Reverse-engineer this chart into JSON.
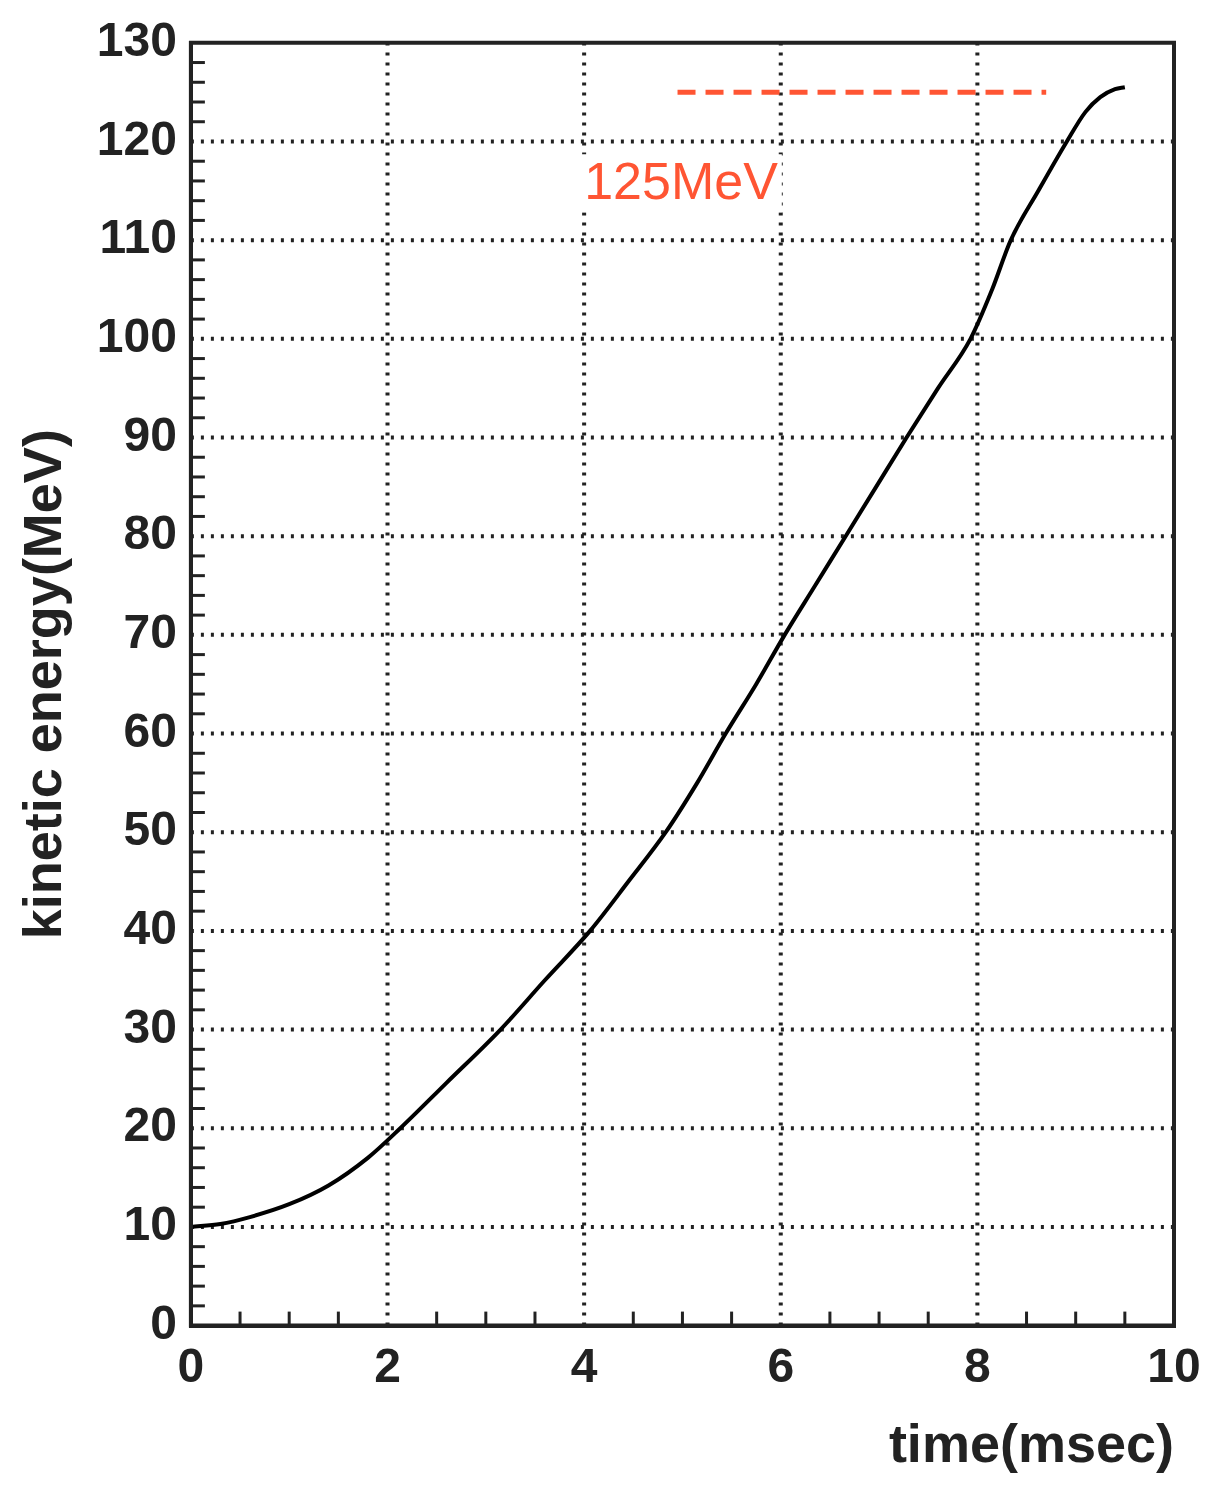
{
  "chart_data": {
    "type": "line",
    "xlabel": "time(msec)",
    "ylabel": "kinetic energy(MeV)",
    "xlim": [
      0,
      10
    ],
    "ylim": [
      0,
      130
    ],
    "xticks": [
      0,
      {
        "value": 0.5,
        "label": null
      },
      {
        "value": 1,
        "label": null
      },
      {
        "value": 1.5,
        "label": null
      },
      2,
      {
        "value": 2.5,
        "label": null
      },
      {
        "value": 3,
        "label": null
      },
      {
        "value": 3.5,
        "label": null
      },
      4,
      {
        "value": 4.5,
        "label": null
      },
      {
        "value": 5,
        "label": null
      },
      {
        "value": 5.5,
        "label": null
      },
      6,
      {
        "value": 6.5,
        "label": null
      },
      {
        "value": 7,
        "label": null
      },
      {
        "value": 7.5,
        "label": null
      },
      8,
      {
        "value": 8.5,
        "label": null
      },
      {
        "value": 9,
        "label": null
      },
      {
        "value": 9.5,
        "label": null
      },
      10
    ],
    "yticks": [
      0,
      {
        "value": 2,
        "label": null
      },
      {
        "value": 4,
        "label": null
      },
      {
        "value": 6,
        "label": null
      },
      {
        "value": 8,
        "label": null
      },
      10,
      {
        "value": 12,
        "label": null
      },
      {
        "value": 14,
        "label": null
      },
      {
        "value": 16,
        "label": null
      },
      {
        "value": 18,
        "label": null
      },
      20,
      {
        "value": 22,
        "label": null
      },
      {
        "value": 24,
        "label": null
      },
      {
        "value": 26,
        "label": null
      },
      {
        "value": 28,
        "label": null
      },
      30,
      {
        "value": 32,
        "label": null
      },
      {
        "value": 34,
        "label": null
      },
      {
        "value": 36,
        "label": null
      },
      {
        "value": 38,
        "label": null
      },
      40,
      {
        "value": 42,
        "label": null
      },
      {
        "value": 44,
        "label": null
      },
      {
        "value": 46,
        "label": null
      },
      {
        "value": 48,
        "label": null
      },
      50,
      {
        "value": 52,
        "label": null
      },
      {
        "value": 54,
        "label": null
      },
      {
        "value": 56,
        "label": null
      },
      {
        "value": 58,
        "label": null
      },
      60,
      {
        "value": 62,
        "label": null
      },
      {
        "value": 64,
        "label": null
      },
      {
        "value": 66,
        "label": null
      },
      {
        "value": 68,
        "label": null
      },
      70,
      {
        "value": 72,
        "label": null
      },
      {
        "value": 74,
        "label": null
      },
      {
        "value": 76,
        "label": null
      },
      {
        "value": 78,
        "label": null
      },
      80,
      {
        "value": 82,
        "label": null
      },
      {
        "value": 84,
        "label": null
      },
      {
        "value": 86,
        "label": null
      },
      {
        "value": 88,
        "label": null
      },
      90,
      {
        "value": 92,
        "label": null
      },
      {
        "value": 94,
        "label": null
      },
      {
        "value": 96,
        "label": null
      },
      {
        "value": 98,
        "label": null
      },
      100,
      {
        "value": 102,
        "label": null
      },
      {
        "value": 104,
        "label": null
      },
      {
        "value": 106,
        "label": null
      },
      {
        "value": 108,
        "label": null
      },
      110,
      {
        "value": 112,
        "label": null
      },
      {
        "value": 114,
        "label": null
      },
      {
        "value": 116,
        "label": null
      },
      {
        "value": 118,
        "label": null
      },
      120,
      {
        "value": 122,
        "label": null
      },
      {
        "value": 124,
        "label": null
      },
      {
        "value": 126,
        "label": null
      },
      {
        "value": 128,
        "label": null
      },
      130
    ],
    "grid": true,
    "legend": false,
    "marker": "none",
    "series": [
      {
        "color": "#000000",
        "line_style": "solid",
        "x": [
          0,
          0.3,
          0.6,
          1,
          1.4,
          1.8,
          2.13,
          2.6,
          3.15,
          3.6,
          4.06,
          4.45,
          4.83,
          5.15,
          5.44,
          5.75,
          6.04,
          6.35,
          6.66,
          6.97,
          7.28,
          7.6,
          7.93,
          8.15,
          8.34,
          8.62,
          8.91,
          9.1,
          9.25,
          9.4,
          9.5
        ],
        "values": [
          10,
          10.3,
          11,
          12.3,
          14.2,
          17,
          20,
          24.6,
          30,
          35,
          40,
          45,
          50,
          55,
          60,
          65,
          70,
          75,
          80,
          85,
          90,
          95,
          100,
          105,
          110,
          115,
          120,
          123,
          124.5,
          125.3,
          125.5
        ]
      },
      {
        "type": "line",
        "color": "#ff5533",
        "line_style": "dashed",
        "x": [
          4.95,
          8.7
        ],
        "values": [
          125,
          125
        ]
      }
    ],
    "annotations": [
      "125MeV"
    ]
  }
}
